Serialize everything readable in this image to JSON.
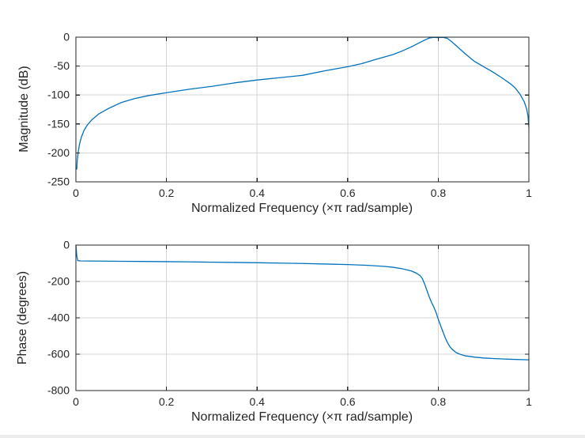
{
  "figure": {
    "background": "#ffffff",
    "axis_color": "#262626",
    "grid_color": "#d6d6d6"
  },
  "chart_data": [
    {
      "type": "line",
      "name": "magnitude-response",
      "title": "",
      "xlabel": "Normalized Frequency (×π rad/sample)",
      "ylabel": "Magnitude (dB)",
      "xlim": [
        0,
        1
      ],
      "ylim": [
        -250,
        0
      ],
      "xticks": [
        0,
        0.2,
        0.4,
        0.6,
        0.8,
        1
      ],
      "xtick_labels": [
        "0",
        "0.2",
        "0.4",
        "0.6",
        "0.8",
        "1"
      ],
      "yticks": [
        0,
        -50,
        -100,
        -150,
        -200,
        -250
      ],
      "ytick_labels": [
        "0",
        "-50",
        "-100",
        "-150",
        "-200",
        "-250"
      ],
      "grid": true,
      "legend": null,
      "line_color": "#0072BD",
      "series": [
        {
          "name": "magnitude-db",
          "x": [
            0.002,
            0.003,
            0.005,
            0.008,
            0.012,
            0.018,
            0.025,
            0.035,
            0.05,
            0.07,
            0.1,
            0.13,
            0.16,
            0.2,
            0.25,
            0.3,
            0.35,
            0.4,
            0.45,
            0.5,
            0.55,
            0.6,
            0.63,
            0.66,
            0.7,
            0.72,
            0.74,
            0.76,
            0.77,
            0.78,
            0.79,
            0.8,
            0.81,
            0.82,
            0.83,
            0.84,
            0.85,
            0.86,
            0.88,
            0.9,
            0.92,
            0.94,
            0.96,
            0.97,
            0.98,
            0.99,
            0.995,
            0.998,
            1.0
          ],
          "y": [
            -228,
            -213,
            -199,
            -185,
            -173,
            -161,
            -152,
            -143,
            -133,
            -124,
            -113,
            -106,
            -101,
            -96,
            -90,
            -85,
            -79,
            -74,
            -70,
            -66,
            -58,
            -51,
            -46,
            -39,
            -30,
            -24,
            -17,
            -9,
            -5,
            -1.5,
            -0.3,
            -0.8,
            -0.3,
            -2,
            -8,
            -15,
            -22,
            -29,
            -42,
            -51,
            -60,
            -70,
            -81,
            -88,
            -98,
            -112,
            -124,
            -136,
            -155
          ]
        }
      ]
    },
    {
      "type": "line",
      "name": "phase-response",
      "title": "",
      "xlabel": "Normalized Frequency (×π rad/sample)",
      "ylabel": "Phase (degrees)",
      "xlim": [
        0,
        1
      ],
      "ylim": [
        -800,
        0
      ],
      "xticks": [
        0,
        0.2,
        0.4,
        0.6,
        0.8,
        1
      ],
      "xtick_labels": [
        "0",
        "0.2",
        "0.4",
        "0.6",
        "0.8",
        "1"
      ],
      "yticks": [
        0,
        -200,
        -400,
        -600,
        -800
      ],
      "ytick_labels": [
        "0",
        "-200",
        "-400",
        "-600",
        "-800"
      ],
      "grid": true,
      "legend": null,
      "line_color": "#0072BD",
      "series": [
        {
          "name": "phase-degrees",
          "x": [
            0,
            0.002,
            0.004,
            0.01,
            0.05,
            0.1,
            0.15,
            0.2,
            0.25,
            0.3,
            0.35,
            0.4,
            0.45,
            0.5,
            0.55,
            0.6,
            0.64,
            0.68,
            0.7,
            0.72,
            0.74,
            0.75,
            0.76,
            0.765,
            0.77,
            0.775,
            0.78,
            0.785,
            0.79,
            0.795,
            0.8,
            0.805,
            0.81,
            0.815,
            0.82,
            0.825,
            0.83,
            0.84,
            0.85,
            0.86,
            0.88,
            0.9,
            0.93,
            0.96,
            1.0
          ],
          "y": [
            0,
            -60,
            -85,
            -87,
            -88,
            -89,
            -90,
            -91,
            -92.5,
            -94,
            -95.5,
            -97,
            -99,
            -101,
            -104,
            -107,
            -111,
            -117,
            -122,
            -130,
            -142,
            -152,
            -168,
            -185,
            -215,
            -250,
            -285,
            -315,
            -340,
            -370,
            -408,
            -442,
            -475,
            -507,
            -535,
            -556,
            -572,
            -592,
            -602,
            -609,
            -616,
            -621,
            -625,
            -628,
            -631
          ]
        }
      ]
    }
  ]
}
